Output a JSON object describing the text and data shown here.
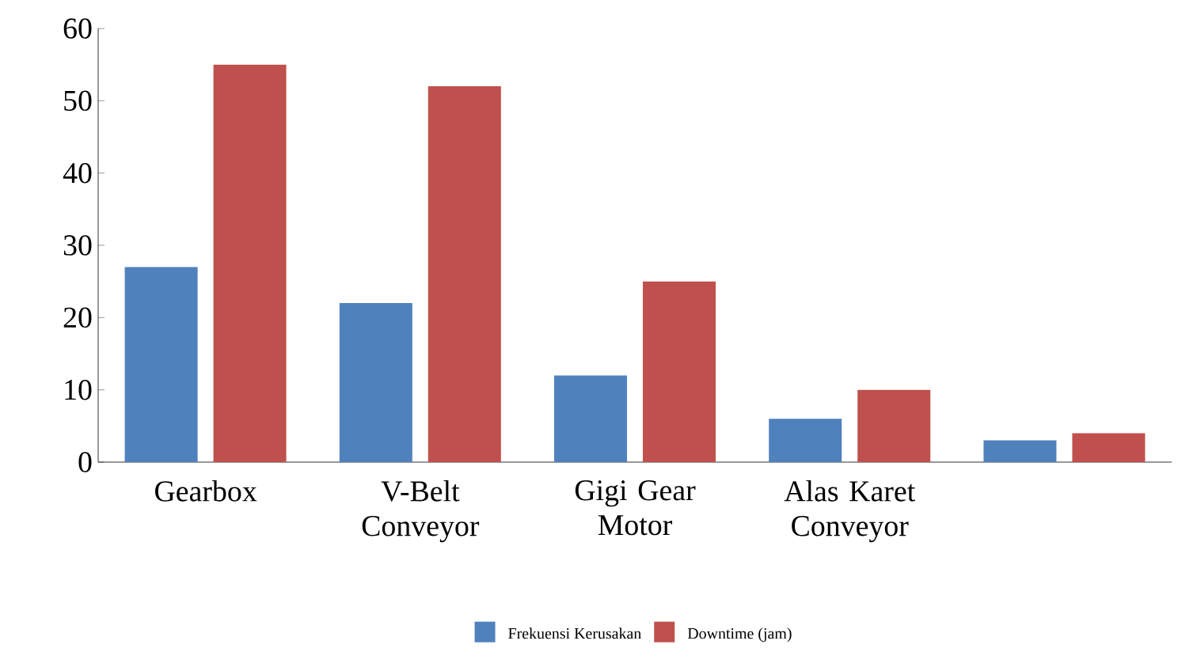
{
  "chart_data": {
    "type": "bar",
    "categories": [
      "Gearbox",
      "V-Belt Conveyor",
      "Gigi Gear Motor",
      "Alas Karet Conveyor",
      null
    ],
    "series": [
      {
        "name": "Frekuensi Kerusakan",
        "color": "#4f81bd",
        "values": [
          27,
          22,
          12,
          6,
          3
        ]
      },
      {
        "name": "Downtime (jam)",
        "color": "#c0504d",
        "values": [
          55,
          52,
          25,
          10,
          4
        ]
      }
    ],
    "ylim": [
      0,
      60
    ],
    "yticks": [
      0,
      10,
      20,
      30,
      40,
      50,
      60
    ],
    "legend": "bottom"
  }
}
